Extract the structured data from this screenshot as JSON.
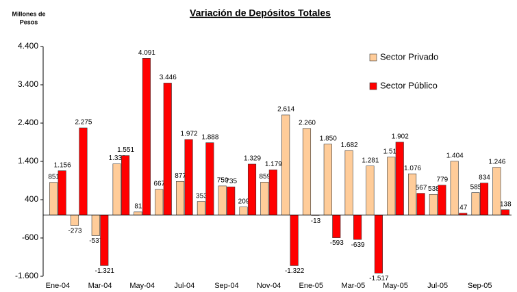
{
  "chart_data": {
    "type": "bar",
    "title": "Variación de Depósitos Totales",
    "ylabel": [
      "Millones de",
      "Pesos"
    ],
    "categories": [
      "Ene-04",
      null,
      "Mar-04",
      null,
      "May-04",
      null,
      "Jul-04",
      null,
      "Sep-04",
      null,
      "Nov-04",
      null,
      "Ene-05",
      null,
      "Mar-05",
      null,
      "May-05",
      null,
      "Jul-05",
      null,
      "Sep-05",
      null
    ],
    "series": [
      {
        "name": "Sector Privado",
        "color": "#ffcc99",
        "values": [
          851,
          -273,
          -537,
          1336,
          81,
          667,
          877,
          353,
          759,
          209,
          859,
          2614,
          2260,
          1850,
          1682,
          1281,
          1511,
          1076,
          538,
          1404,
          585,
          1246
        ],
        "value_labels": [
          "851",
          "-273",
          "-537",
          "1.336",
          "81",
          "667",
          "877",
          "353",
          "759",
          "209",
          "859",
          "2.614",
          "2.260",
          "1.850",
          "1.682",
          "1.281",
          "1.511",
          "1.076",
          "538",
          "1.404",
          "585",
          "1.246"
        ]
      },
      {
        "name": "Sector Público",
        "color": "#ff0000",
        "values": [
          1156,
          2275,
          -1321,
          1551,
          4091,
          3446,
          1972,
          1888,
          735,
          1329,
          1179,
          -1322,
          -13,
          -593,
          -639,
          -1517,
          1902,
          567,
          779,
          47,
          834,
          138
        ],
        "value_labels": [
          "1.156",
          "2.275",
          "-1.321",
          "1.551",
          "4.091",
          "3.446",
          "1.972",
          "1.888",
          "735",
          "1.329",
          "1.179",
          "-1.322",
          "-13",
          "-593",
          "-639",
          "-1.517",
          "1.902",
          "567",
          "779",
          "47",
          "834",
          "138"
        ]
      }
    ],
    "ylim": [
      -1600,
      4400
    ],
    "yticks": [
      {
        "value": -1600,
        "label": "-1.600"
      },
      {
        "value": -600,
        "label": "-600"
      },
      {
        "value": 400,
        "label": "400"
      },
      {
        "value": 1400,
        "label": "1.400"
      },
      {
        "value": 2400,
        "label": "2.400"
      },
      {
        "value": 3400,
        "label": "3.400"
      },
      {
        "value": 4400,
        "label": "4.400"
      }
    ],
    "grid": false,
    "legend": "upper right"
  }
}
